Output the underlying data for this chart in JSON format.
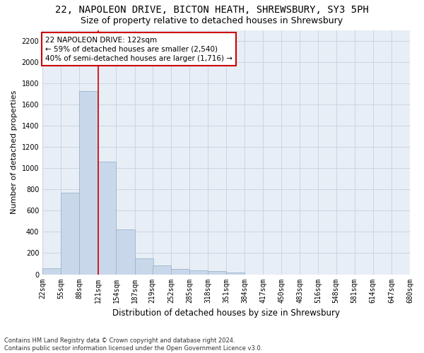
{
  "title1": "22, NAPOLEON DRIVE, BICTON HEATH, SHREWSBURY, SY3 5PH",
  "title2": "Size of property relative to detached houses in Shrewsbury",
  "xlabel": "Distribution of detached houses by size in Shrewsbury",
  "ylabel": "Number of detached properties",
  "footnote": "Contains HM Land Registry data © Crown copyright and database right 2024.\nContains public sector information licensed under the Open Government Licence v3.0.",
  "bin_labels": [
    "22sqm",
    "55sqm",
    "88sqm",
    "121sqm",
    "154sqm",
    "187sqm",
    "219sqm",
    "252sqm",
    "285sqm",
    "318sqm",
    "351sqm",
    "384sqm",
    "417sqm",
    "450sqm",
    "483sqm",
    "516sqm",
    "548sqm",
    "581sqm",
    "614sqm",
    "647sqm",
    "680sqm"
  ],
  "bin_edges": [
    22,
    55,
    88,
    121,
    154,
    187,
    219,
    252,
    285,
    318,
    351,
    384,
    417,
    450,
    483,
    516,
    548,
    581,
    614,
    647,
    680
  ],
  "bar_heights": [
    55,
    765,
    1725,
    1060,
    420,
    150,
    85,
    48,
    40,
    30,
    20,
    0,
    0,
    0,
    0,
    0,
    0,
    0,
    0,
    0
  ],
  "bar_color": "#c8d8ea",
  "bar_edge_color": "#9ab4cc",
  "grid_color": "#ccd4e0",
  "property_line_x": 122,
  "property_line_color": "#cc0000",
  "annotation_text": "22 NAPOLEON DRIVE: 122sqm\n← 59% of detached houses are smaller (2,540)\n40% of semi-detached houses are larger (1,716) →",
  "annotation_box_color": "#ffffff",
  "annotation_border_color": "#cc0000",
  "ylim": [
    0,
    2300
  ],
  "yticks": [
    0,
    200,
    400,
    600,
    800,
    1000,
    1200,
    1400,
    1600,
    1800,
    2000,
    2200
  ],
  "bg_color": "#e8eef6",
  "title1_fontsize": 10,
  "title2_fontsize": 9,
  "xlabel_fontsize": 8.5,
  "ylabel_fontsize": 8,
  "tick_fontsize": 7,
  "annotation_fontsize": 7.5,
  "footnote_fontsize": 6
}
